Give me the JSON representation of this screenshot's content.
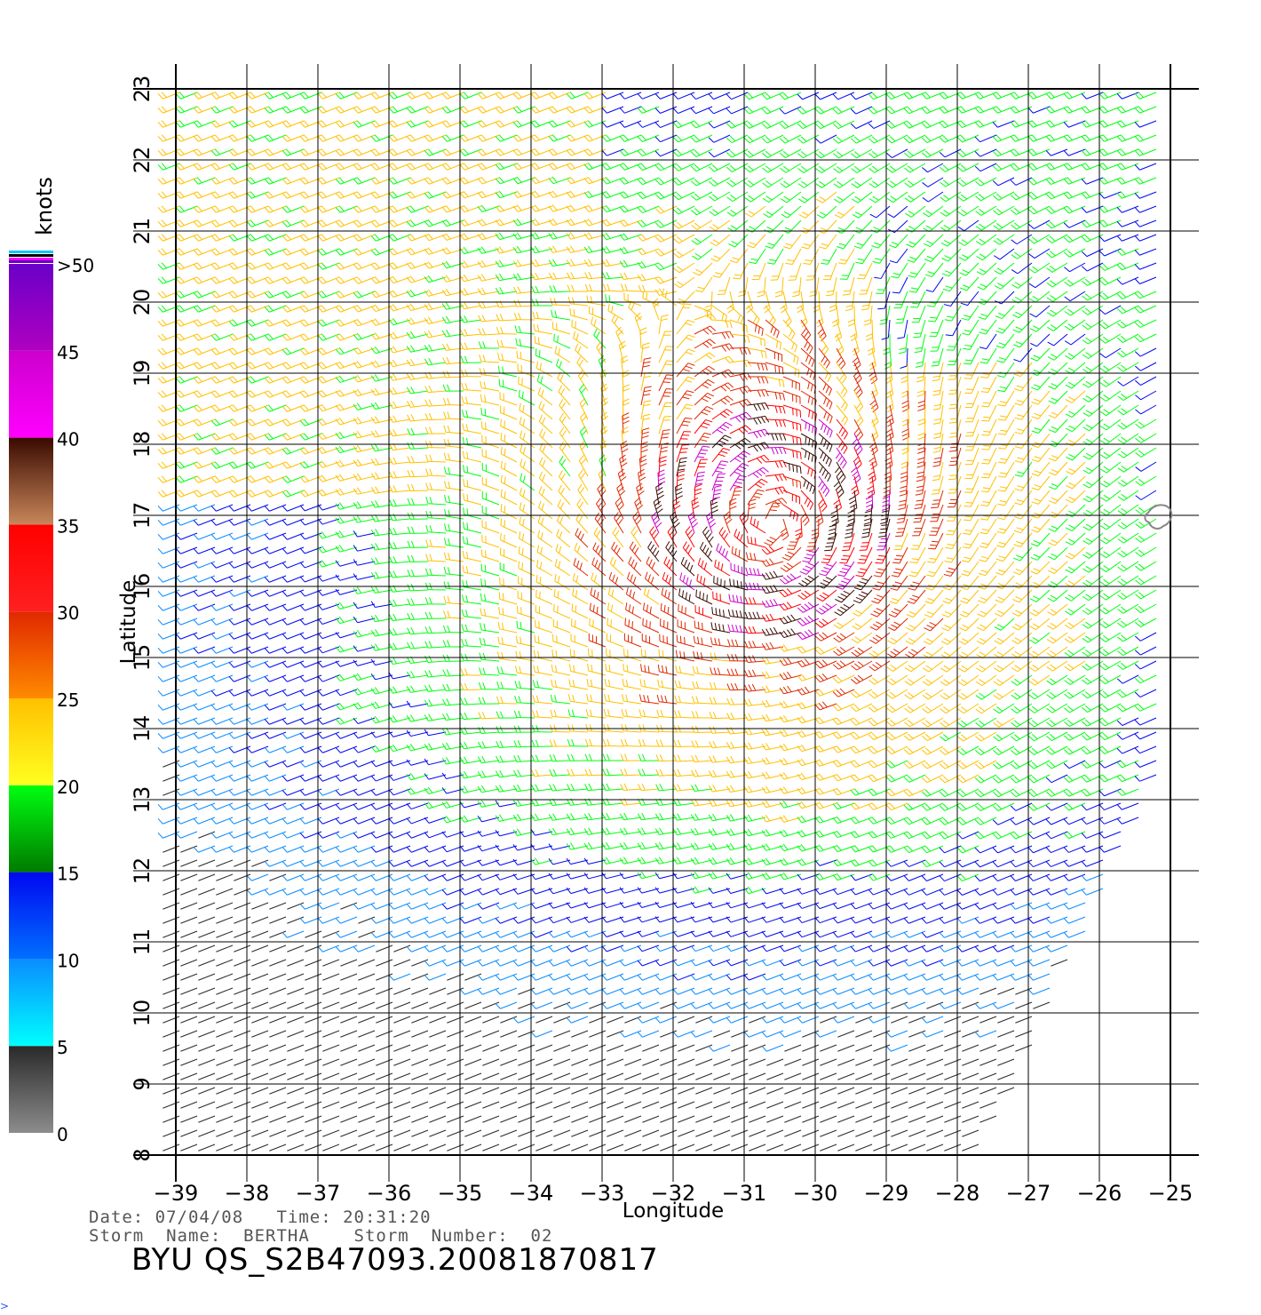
{
  "plot": {
    "xlabel": "Longitude",
    "ylabel": "Latitude",
    "lon_ticks": [
      "−39",
      "−38",
      "−37",
      "−36",
      "−35",
      "−34",
      "−33",
      "−32",
      "−31",
      "−30",
      "−29",
      "−28",
      "−27",
      "−26",
      "−25"
    ],
    "lat_ticks": [
      "8",
      "9",
      "10",
      "11",
      "12",
      "13",
      "14",
      "15",
      "16",
      "17",
      "18",
      "19",
      "20",
      "21",
      "22",
      "23"
    ],
    "lon_range": [
      -39,
      -25
    ],
    "lat_range": [
      8,
      23
    ],
    "storm_center": {
      "lon": -30.6,
      "lat": 16.9
    }
  },
  "colorbar": {
    "unit_label": "knots",
    "tick_labels": [
      "0",
      "5",
      "10",
      "15",
      "20",
      "25",
      "30",
      "35",
      "40",
      "45",
      ">50"
    ],
    "bands": [
      {
        "from": 0,
        "to": 5,
        "colors": [
          "#8c8c8c",
          "#2a2a2a"
        ]
      },
      {
        "from": 5,
        "to": 10,
        "colors": [
          "#00ffff",
          "#0a8cff"
        ]
      },
      {
        "from": 10,
        "to": 15,
        "colors": [
          "#0070ff",
          "#0008f0"
        ]
      },
      {
        "from": 15,
        "to": 20,
        "colors": [
          "#007a00",
          "#00ff10"
        ]
      },
      {
        "from": 20,
        "to": 25,
        "colors": [
          "#ffff20",
          "#ffc000"
        ]
      },
      {
        "from": 25,
        "to": 30,
        "colors": [
          "#ff8a00",
          "#e02800"
        ]
      },
      {
        "from": 30,
        "to": 35,
        "colors": [
          "#ff2020",
          "#ff0000"
        ]
      },
      {
        "from": 35,
        "to": 40,
        "colors": [
          "#c8875a",
          "#3a0a00"
        ]
      },
      {
        "from": 40,
        "to": 45,
        "colors": [
          "#ff00ff",
          "#cc00cc"
        ]
      },
      {
        "from": 45,
        "to": 50,
        "colors": [
          "#b000c0",
          "#6a00c8"
        ]
      }
    ]
  },
  "footer": {
    "line1": "Date: 07/04/08   Time: 20:31:20",
    "line2": "Storm  Name:  BERTHA    Storm  Number:  02",
    "product_id": "BYU  QS_S2B47093.20081870817"
  }
}
